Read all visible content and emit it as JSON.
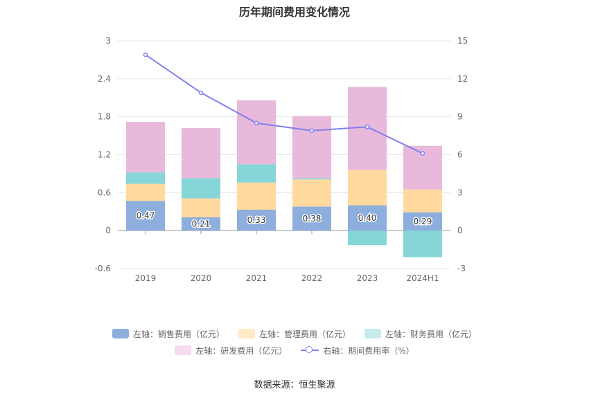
{
  "chart_data": {
    "type": "bar",
    "title": "历年期间费用变化情况",
    "categories": [
      "2019",
      "2020",
      "2021",
      "2022",
      "2023",
      "2024H1"
    ],
    "left_axis": {
      "ylim": [
        -0.6,
        3
      ],
      "ticks": [
        "-0.6",
        "0",
        "0.6",
        "1.2",
        "1.8",
        "2.4",
        "3"
      ]
    },
    "right_axis": {
      "ylim": [
        -3,
        15
      ],
      "ticks": [
        "-3",
        "0",
        "3",
        "6",
        "9",
        "12",
        "15"
      ]
    },
    "series": [
      {
        "name": "左轴：销售费用（亿元）",
        "type": "bar",
        "axis": "left",
        "color": "#8eaedd",
        "values": [
          0.47,
          0.21,
          0.33,
          0.38,
          0.4,
          0.29
        ],
        "labels": [
          "0.47",
          "0.21",
          "0.33",
          "0.38",
          "0.40",
          "0.29"
        ]
      },
      {
        "name": "左轴：管理费用（亿元）",
        "type": "bar",
        "axis": "left",
        "color": "#ffd99e",
        "values": [
          0.27,
          0.3,
          0.43,
          0.43,
          0.56,
          0.36
        ]
      },
      {
        "name": "左轴：财务费用（亿元）",
        "type": "bar",
        "axis": "left",
        "color": "#86d6d8",
        "values": [
          0.18,
          0.32,
          0.29,
          0.02,
          -0.23,
          -0.42
        ]
      },
      {
        "name": "左轴：研发费用（亿元）",
        "type": "bar",
        "axis": "left",
        "color": "#e8b9da",
        "values": [
          0.8,
          0.79,
          1.01,
          0.98,
          1.31,
          0.69
        ]
      },
      {
        "name": "右轴：期间费用率（%）",
        "type": "line",
        "axis": "right",
        "color": "#8080f0",
        "values": [
          13.9,
          10.9,
          8.5,
          7.9,
          8.2,
          6.1
        ]
      }
    ],
    "grid": true,
    "legend_position": "bottom"
  },
  "legend_items": [
    {
      "label": "左轴：销售费用（亿元）",
      "color": "#8eaedd"
    },
    {
      "label": "左轴：管理费用（亿元）",
      "color": "#ffe9c6"
    },
    {
      "label": "左轴：财务费用（亿元）",
      "color": "#c4ecec"
    },
    {
      "label": "左轴：研发费用（亿元）",
      "color": "#f4dcee"
    },
    {
      "label": "右轴：期间费用率（%）",
      "color": "#8080f0"
    }
  ],
  "source": "数据来源：恒生聚源"
}
